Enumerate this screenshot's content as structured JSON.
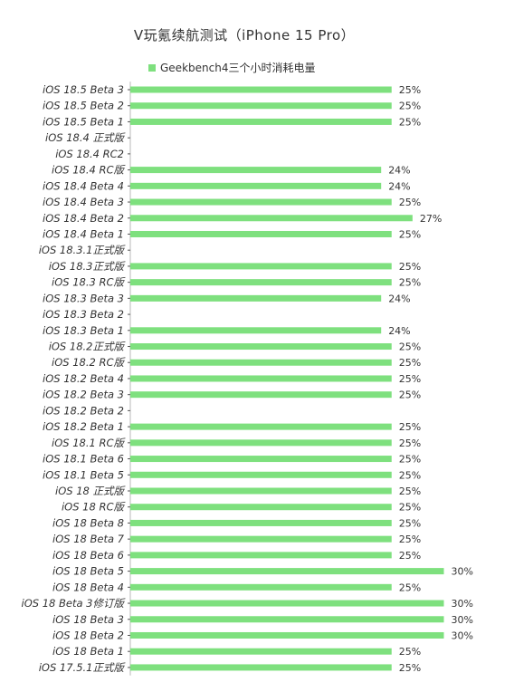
{
  "chart_data": {
    "type": "bar",
    "orientation": "horizontal",
    "title": "V玩氪续航测试（iPhone 15 Pro）",
    "series": [
      {
        "name": "Geekbench4三个小时消耗电量",
        "color": "#7ee07e",
        "values": [
          25,
          25,
          25,
          null,
          null,
          24,
          24,
          25,
          27,
          25,
          null,
          25,
          25,
          24,
          null,
          24,
          25,
          25,
          25,
          25,
          null,
          25,
          25,
          25,
          25,
          25,
          25,
          25,
          25,
          25,
          30,
          25,
          30,
          30,
          30,
          25,
          25
        ]
      }
    ],
    "categories": [
      "iOS 18.5 Beta 3",
      "iOS 18.5 Beta 2",
      "iOS 18.5 Beta 1",
      "iOS 18.4 正式版",
      "iOS 18.4 RC2",
      "iOS 18.4 RC版",
      "iOS 18.4 Beta 4",
      "iOS 18.4 Beta 3",
      "iOS 18.4 Beta 2",
      "iOS 18.4 Beta 1",
      "iOS 18.3.1正式版",
      "iOS 18.3正式版",
      "iOS 18.3 RC版",
      "iOS 18.3 Beta 3",
      "iOS 18.3 Beta 2",
      "iOS 18.3 Beta 1",
      "iOS 18.2正式版",
      "iOS 18.2 RC版",
      "iOS 18.2 Beta 4",
      "iOS 18.2 Beta 3",
      "iOS 18.2 Beta 2",
      "iOS 18.2 Beta 1",
      "iOS 18.1 RC版",
      "iOS 18.1 Beta 6",
      "iOS 18.1 Beta 5",
      "iOS 18 正式版",
      "iOS 18 RC版",
      "iOS 18 Beta 8",
      "iOS 18 Beta 7",
      "iOS 18 Beta 6",
      "iOS 18 Beta 5",
      "iOS 18 Beta 4",
      "iOS 18 Beta 3修订版",
      "iOS 18 Beta 3",
      "iOS 18 Beta 2",
      "iOS 18 Beta 1",
      "iOS 17.5.1正式版"
    ],
    "value_suffix": "%",
    "xlim": [
      0,
      30
    ],
    "grid": false,
    "legend_position": "top"
  }
}
